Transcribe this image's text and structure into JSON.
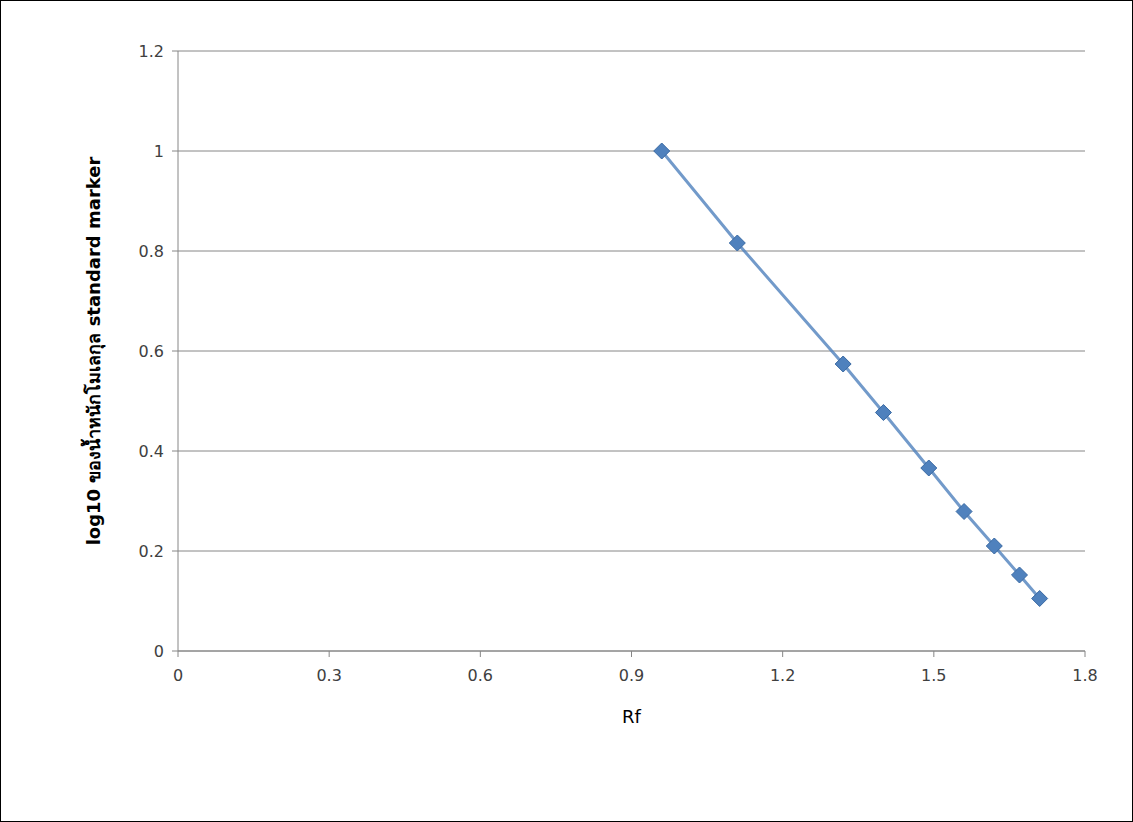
{
  "chart_data": {
    "type": "line",
    "x_label": "Rf",
    "y_label": "log10 ของน้ำหนักโมเลกุล standard marker",
    "x": [
      0.96,
      1.11,
      1.32,
      1.4,
      1.49,
      1.56,
      1.62,
      1.67,
      1.71
    ],
    "values": [
      1.0,
      0.816,
      0.574,
      0.477,
      0.366,
      0.279,
      0.21,
      0.152,
      0.105
    ],
    "color": "#4f81bd",
    "marker": "diamond",
    "xlim": [
      0,
      1.8
    ],
    "ylim": [
      0,
      1.2
    ],
    "xticks": [
      0,
      0.3,
      0.6,
      0.9,
      1.2,
      1.5,
      1.8
    ],
    "yticks": [
      0,
      0.2,
      0.4,
      0.6,
      0.8,
      1,
      1.2
    ],
    "grid": true
  }
}
